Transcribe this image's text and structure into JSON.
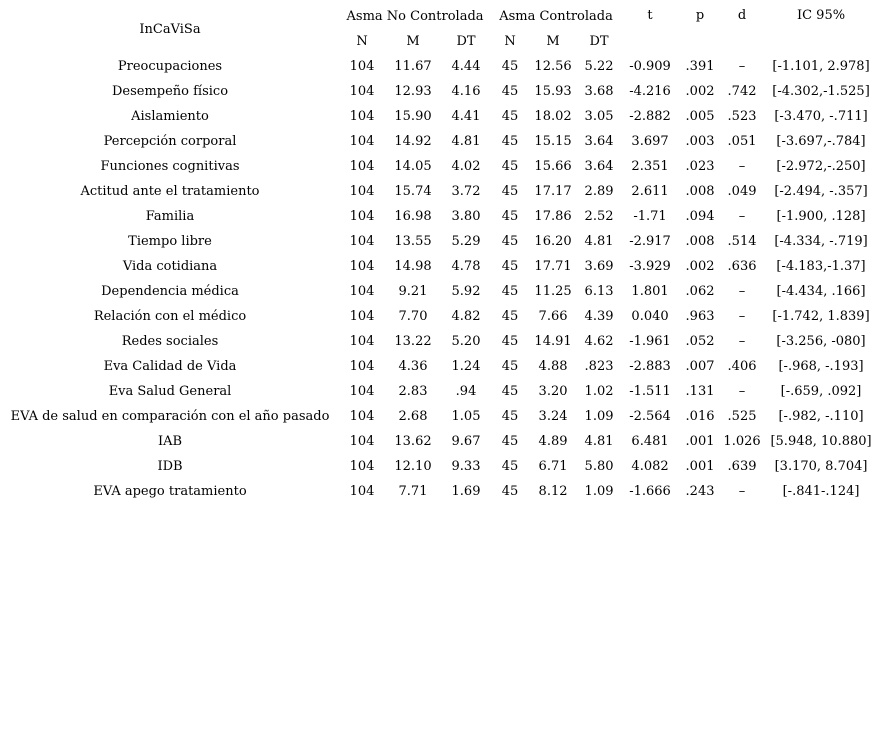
{
  "table": {
    "scale_header": "InCaViSa",
    "group1_header": "Asma No Controlada",
    "group2_header": "Asma Controlada",
    "sub_headers": [
      "N",
      "M",
      "DT",
      "N",
      "M",
      "DT"
    ],
    "stat_headers": {
      "t": "t",
      "p": "p",
      "d": "d",
      "ic": "IC 95%"
    },
    "row_keys": [
      "label",
      "n1",
      "m1",
      "dt1",
      "n2",
      "m2",
      "dt2",
      "t",
      "p",
      "d",
      "ic"
    ],
    "rows": [
      {
        "label": "Preocupaciones",
        "n1": "104",
        "m1": "11.67",
        "dt1": "4.44",
        "n2": "45",
        "m2": "12.56",
        "dt2": "5.22",
        "t": "-0.909",
        "p": ".391",
        "d": "–",
        "ic": "[-1.101, 2.978]"
      },
      {
        "label": "Desempeño físico",
        "n1": "104",
        "m1": "12.93",
        "dt1": "4.16",
        "n2": "45",
        "m2": "15.93",
        "dt2": "3.68",
        "t": "-4.216",
        "p": ".002",
        "d": ".742",
        "ic": "[-4.302,-1.525]"
      },
      {
        "label": "Aislamiento",
        "n1": "104",
        "m1": "15.90",
        "dt1": "4.41",
        "n2": "45",
        "m2": "18.02",
        "dt2": "3.05",
        "t": "-2.882",
        "p": ".005",
        "d": ".523",
        "ic": "[-3.470, -.711]"
      },
      {
        "label": "Percepción corporal",
        "n1": "104",
        "m1": "14.92",
        "dt1": "4.81",
        "n2": "45",
        "m2": "15.15",
        "dt2": "3.64",
        "t": "3.697",
        "p": ".003",
        "d": ".051",
        "ic": "[-3.697,-.784]"
      },
      {
        "label": "Funciones cognitivas",
        "n1": "104",
        "m1": "14.05",
        "dt1": "4.02",
        "n2": "45",
        "m2": "15.66",
        "dt2": "3.64",
        "t": "2.351",
        "p": ".023",
        "d": "–",
        "ic": "[-2.972,-.250]"
      },
      {
        "label": "Actitud ante el tratamiento",
        "n1": "104",
        "m1": "15.74",
        "dt1": "3.72",
        "n2": "45",
        "m2": "17.17",
        "dt2": "2.89",
        "t": "2.611",
        "p": ".008",
        "d": ".049",
        "ic": "[-2.494, -.357]"
      },
      {
        "label": "Familia",
        "n1": "104",
        "m1": "16.98",
        "dt1": "3.80",
        "n2": "45",
        "m2": "17.86",
        "dt2": "2.52",
        "t": "-1.71",
        "p": ".094",
        "d": "–",
        "ic": "[-1.900, .128]"
      },
      {
        "label": "Tiempo libre",
        "n1": "104",
        "m1": "13.55",
        "dt1": "5.29",
        "n2": "45",
        "m2": "16.20",
        "dt2": "4.81",
        "t": "-2.917",
        "p": ".008",
        "d": ".514",
        "ic": "[-4.334, -.719]"
      },
      {
        "label": "Vida cotidiana",
        "n1": "104",
        "m1": "14.98",
        "dt1": "4.78",
        "n2": "45",
        "m2": "17.71",
        "dt2": "3.69",
        "t": "-3.929",
        "p": ".002",
        "d": ".636",
        "ic": "[-4.183,-1.37]"
      },
      {
        "label": "Dependencia médica",
        "n1": "104",
        "m1": "9.21",
        "dt1": "5.92",
        "n2": "45",
        "m2": "11.25",
        "dt2": "6.13",
        "t": "1.801",
        "p": ".062",
        "d": "–",
        "ic": "[-4.434, .166]"
      },
      {
        "label": "Relación con el médico",
        "n1": "104",
        "m1": "7.70",
        "dt1": "4.82",
        "n2": "45",
        "m2": "7.66",
        "dt2": "4.39",
        "t": "0.040",
        "p": ".963",
        "d": "–",
        "ic": "[-1.742, 1.839]"
      },
      {
        "label": "Redes sociales",
        "n1": "104",
        "m1": "13.22",
        "dt1": "5.20",
        "n2": "45",
        "m2": "14.91",
        "dt2": "4.62",
        "t": "-1.961",
        "p": ".052",
        "d": "–",
        "ic": "[-3.256, -080]"
      },
      {
        "label": "Eva Calidad de Vida",
        "n1": "104",
        "m1": "4.36",
        "dt1": "1.24",
        "n2": "45",
        "m2": "4.88",
        "dt2": ".823",
        "t": "-2.883",
        "p": ".007",
        "d": ".406",
        "ic": "[-.968, -.193]"
      },
      {
        "label": "Eva Salud General",
        "n1": "104",
        "m1": "2.83",
        "dt1": ".94",
        "n2": "45",
        "m2": "3.20",
        "dt2": "1.02",
        "t": "-1.511",
        "p": ".131",
        "d": "–",
        "ic": "[-.659, .092]"
      },
      {
        "label": "EVA de salud en comparación con el año pasado",
        "n1": "104",
        "m1": "2.68",
        "dt1": "1.05",
        "n2": "45",
        "m2": "3.24",
        "dt2": "1.09",
        "t": "-2.564",
        "p": ".016",
        "d": ".525",
        "ic": "[-.982, -.110]"
      },
      {
        "label": "IAB",
        "n1": "104",
        "m1": "13.62",
        "dt1": "9.67",
        "n2": "45",
        "m2": "4.89",
        "dt2": "4.81",
        "t": "6.481",
        "p": ".001",
        "d": "1.026",
        "ic": "[5.948, 10.880]"
      },
      {
        "label": "IDB",
        "n1": "104",
        "m1": "12.10",
        "dt1": "9.33",
        "n2": "45",
        "m2": "6.71",
        "dt2": "5.80",
        "t": "4.082",
        "p": ".001",
        "d": ".639",
        "ic": "[3.170, 8.704]"
      },
      {
        "label": "EVA apego tratamiento",
        "n1": "104",
        "m1": "7.71",
        "dt1": "1.69",
        "n2": "45",
        "m2": "8.12",
        "dt2": "1.09",
        "t": "-1.666",
        "p": ".243",
        "d": "–",
        "ic": "[-.841-.124]"
      }
    ]
  }
}
